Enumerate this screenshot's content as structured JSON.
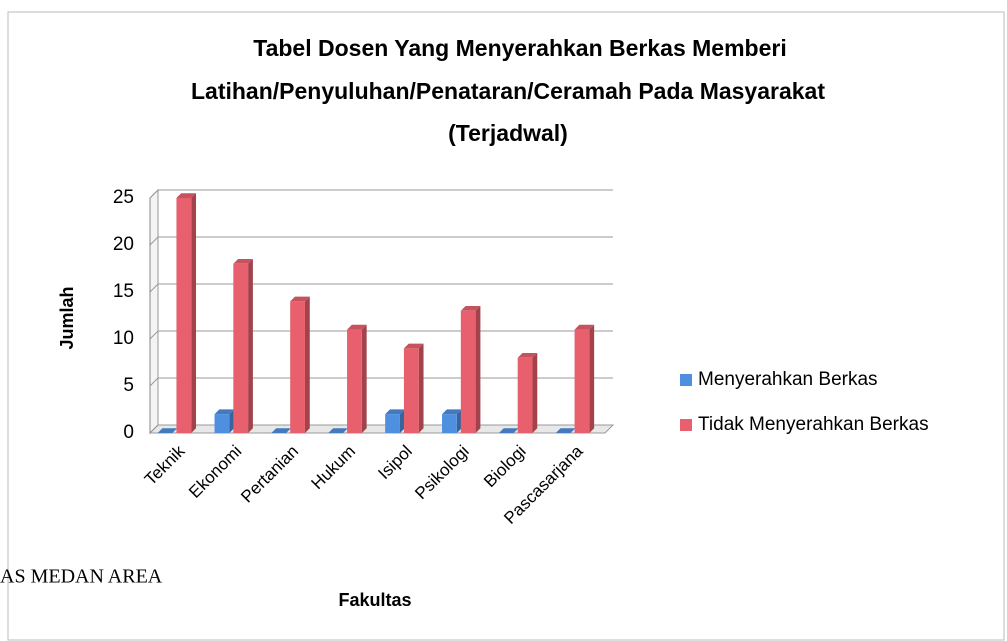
{
  "chart_data": {
    "type": "bar",
    "title_lines": [
      "Tabel Dosen Yang Menyerahkan  Berkas Memberi",
      "Latihan/Penyuluhan/Penataran/Ceramah Pada Masyarakat",
      "(Terjadwal)"
    ],
    "x_label": "Fakultas",
    "y_label": "Jumlah",
    "categories": [
      "Teknik",
      "Ekonomi",
      "Pertanian",
      "Hukum",
      "Isipol",
      "Psikologi",
      "Biologi",
      "Pascasarjana"
    ],
    "series": [
      {
        "name": "Menyerahkan Berkas",
        "color": "#4f8fe0",
        "values": [
          0,
          2,
          0,
          0,
          2,
          2,
          0,
          0
        ]
      },
      {
        "name": "Tidak Menyerahkan Berkas",
        "color": "#e8606d",
        "values": [
          25,
          18,
          14,
          11,
          9,
          13,
          8,
          11
        ]
      }
    ],
    "ylim": [
      0,
      25
    ],
    "yticks": [
      0,
      5,
      10,
      15,
      20,
      25
    ],
    "grid": true,
    "legend": "right"
  },
  "watermark": "AS MEDAN AREA"
}
